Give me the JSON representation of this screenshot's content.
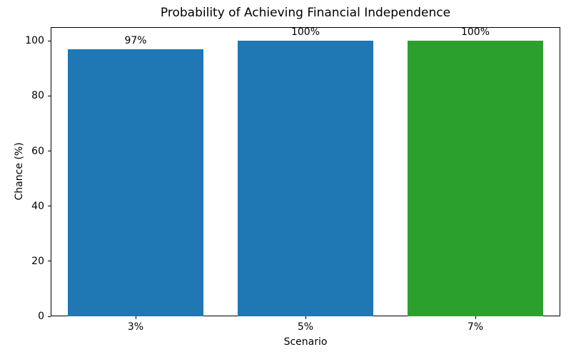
{
  "chart_data": {
    "type": "bar",
    "title": "Probability of Achieving Financial Independence",
    "xlabel": "Scenario",
    "ylabel": "Chance (%)",
    "categories": [
      "3%",
      "5%",
      "7%"
    ],
    "values": [
      97,
      100,
      100
    ],
    "bar_labels": [
      "97%",
      "100%",
      "100%"
    ],
    "bar_colors": [
      "#1f77b4",
      "#1f77b4",
      "#2ca02c"
    ],
    "ylim": [
      0,
      105
    ],
    "yticks": [
      0,
      20,
      40,
      60,
      80,
      100
    ],
    "grid": false,
    "legend_position": "none",
    "background_color": "#ffffff",
    "spine_color": "#000000",
    "text_color": "#000000"
  }
}
